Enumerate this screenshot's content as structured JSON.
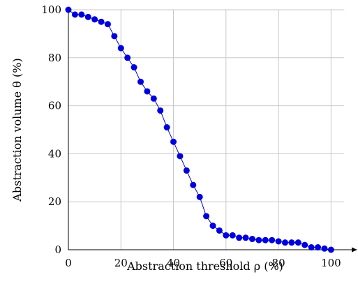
{
  "chart_data": {
    "type": "line",
    "xlabel": "Abstraction threshold ρ (%)",
    "ylabel": "Abstraction volume θ (%)",
    "xlim": [
      0,
      110
    ],
    "ylim": [
      0,
      100
    ],
    "xticks": [
      0,
      20,
      40,
      60,
      80,
      100
    ],
    "yticks": [
      0,
      20,
      40,
      60,
      80,
      100
    ],
    "grid": true,
    "colors": {
      "series": "#0000dd"
    },
    "series": [
      {
        "x": [
          0,
          2.5,
          5,
          7.5,
          10,
          12.5,
          15,
          17.5,
          20,
          22.5,
          25,
          27.5,
          30,
          32.5,
          35,
          37.5,
          40,
          42.5,
          45,
          47.5,
          50,
          52.5,
          55,
          57.5,
          60,
          62.5,
          65,
          67.5,
          70,
          72.5,
          75,
          77.5,
          80,
          82.5,
          85,
          87.5,
          90,
          92.5,
          95,
          97.5,
          100
        ],
        "y": [
          100,
          98,
          98,
          97,
          96,
          95,
          94,
          89,
          84,
          80,
          76,
          70,
          66,
          63,
          58,
          51,
          45,
          39,
          33,
          27,
          22,
          14,
          10,
          8,
          6,
          6,
          5,
          5,
          4.5,
          4,
          4,
          4,
          3.5,
          3,
          3,
          3,
          2,
          1,
          1,
          0.5,
          0
        ]
      }
    ]
  }
}
